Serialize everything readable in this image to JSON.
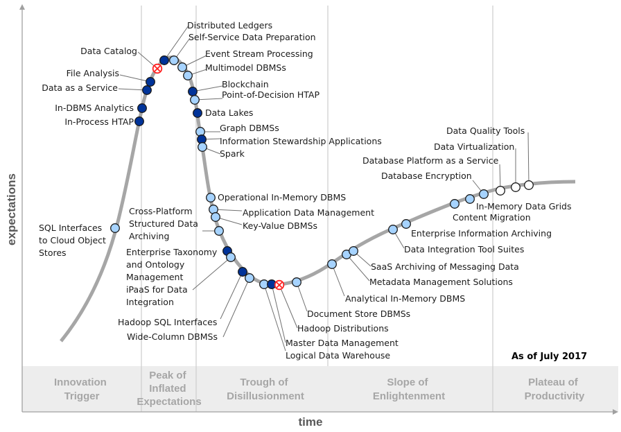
{
  "axes": {
    "y_label": "expectations",
    "x_label": "time"
  },
  "as_of": "As of July 2017",
  "phases": [
    {
      "lines": [
        "Innovation",
        "Trigger"
      ]
    },
    {
      "lines": [
        "Peak of",
        "Inflated",
        "Expectations"
      ]
    },
    {
      "lines": [
        "Trough of",
        "Disillusionment"
      ]
    },
    {
      "lines": [
        "Slope of",
        "Enlightenment"
      ]
    },
    {
      "lines": [
        "Plateau of",
        "Productivity"
      ]
    }
  ],
  "legend_colors": {
    "less_than_2_years": "#a6d3ff",
    "2_to_5_years": "#ffffff",
    "5_to_10_years": "#003399",
    "obsolete": "#ff2020",
    "curve": "#a6a6a6"
  },
  "technologies": [
    {
      "name": "SQL Interfaces to Cloud Object Stores",
      "lines": [
        "SQL Interfaces",
        "to Cloud Object",
        "Stores"
      ],
      "type": "light"
    },
    {
      "name": "In-Process HTAP",
      "lines": [
        "In-Process HTAP"
      ],
      "type": "dark"
    },
    {
      "name": "In-DBMS Analytics",
      "lines": [
        "In-DBMS Analytics"
      ],
      "type": "dark"
    },
    {
      "name": "Data as a Service",
      "lines": [
        "Data as a Service"
      ],
      "type": "dark"
    },
    {
      "name": "File Analysis",
      "lines": [
        "File Analysis"
      ],
      "type": "dark"
    },
    {
      "name": "Data Catalog",
      "lines": [
        "Data Catalog"
      ],
      "type": "obsolete"
    },
    {
      "name": "Distributed Ledgers",
      "lines": [
        "Distributed Ledgers"
      ],
      "type": "dark"
    },
    {
      "name": "Self-Service Data Preparation",
      "lines": [
        "Self-Service Data Preparation"
      ],
      "type": "light"
    },
    {
      "name": "Event Stream Processing",
      "lines": [
        "Event Stream Processing"
      ],
      "type": "light"
    },
    {
      "name": "Multimodel DBMSs",
      "lines": [
        "Multimodel DBMSs"
      ],
      "type": "light"
    },
    {
      "name": "Blockchain",
      "lines": [
        "Blockchain"
      ],
      "type": "dark"
    },
    {
      "name": "Point-of-Decision HTAP",
      "lines": [
        "Point-of-Decision HTAP"
      ],
      "type": "light"
    },
    {
      "name": "Data Lakes",
      "lines": [
        "Data Lakes"
      ],
      "type": "dark"
    },
    {
      "name": "Graph DBMSs",
      "lines": [
        "Graph DBMSs"
      ],
      "type": "light"
    },
    {
      "name": "Information Stewardship Applications",
      "lines": [
        "Information Stewardship Applications"
      ],
      "type": "dark"
    },
    {
      "name": "Spark",
      "lines": [
        "Spark"
      ],
      "type": "light"
    },
    {
      "name": "Operational In-Memory DBMS",
      "lines": [
        "Operational In-Memory DBMS"
      ],
      "type": "light"
    },
    {
      "name": "Application Data Management",
      "lines": [
        "Application Data Management"
      ],
      "type": "light"
    },
    {
      "name": "Key-Value DBMSs",
      "lines": [
        "Key-Value DBMSs"
      ],
      "type": "light"
    },
    {
      "name": "Cross-Platform Structured Data Archiving",
      "lines": [
        "Cross-Platform",
        "Structured Data",
        "Archiving"
      ],
      "type": "light"
    },
    {
      "name": "Enterprise Taxonomy and Ontology Management",
      "lines": [
        "Enterprise Taxonomy",
        "and Ontology",
        "Management"
      ],
      "type": "dark"
    },
    {
      "name": "iPaaS for Data Integration",
      "lines": [
        "iPaaS for Data",
        "Integration"
      ],
      "type": "light"
    },
    {
      "name": "Hadoop SQL Interfaces",
      "lines": [
        "Hadoop SQL Interfaces"
      ],
      "type": "dark"
    },
    {
      "name": "Wide-Column DBMSs",
      "lines": [
        "Wide-Column DBMSs"
      ],
      "type": "light"
    },
    {
      "name": "Logical Data Warehouse",
      "lines": [
        "Logical Data Warehouse"
      ],
      "type": "light"
    },
    {
      "name": "Master Data Management",
      "lines": [
        "Master Data Management"
      ],
      "type": "dark"
    },
    {
      "name": "Hadoop Distributions",
      "lines": [
        "Hadoop Distributions"
      ],
      "type": "obsolete"
    },
    {
      "name": "Document Store DBMSs",
      "lines": [
        "Document Store DBMSs"
      ],
      "type": "light"
    },
    {
      "name": "Analytical In-Memory DBMS",
      "lines": [
        "Analytical In-Memory DBMS"
      ],
      "type": "light"
    },
    {
      "name": "Metadata Management Solutions",
      "lines": [
        "Metadata Management Solutions"
      ],
      "type": "light"
    },
    {
      "name": "SaaS Archiving of Messaging Data",
      "lines": [
        "SaaS Archiving of Messaging Data"
      ],
      "type": "light"
    },
    {
      "name": "Data Integration Tool Suites",
      "lines": [
        "Data Integration Tool Suites"
      ],
      "type": "light"
    },
    {
      "name": "Enterprise Information Archiving",
      "lines": [
        "Enterprise Information Archiving"
      ],
      "type": "light"
    },
    {
      "name": "Content Migration",
      "lines": [
        "Content Migration"
      ],
      "type": "light"
    },
    {
      "name": "In-Memory Data Grids",
      "lines": [
        "In-Memory Data Grids"
      ],
      "type": "light"
    },
    {
      "name": "Database Encryption",
      "lines": [
        "Database Encryption"
      ],
      "type": "light"
    },
    {
      "name": "Database Platform as a Service",
      "lines": [
        "Database Platform as a Service"
      ],
      "type": "white"
    },
    {
      "name": "Data Virtualization",
      "lines": [
        "Data Virtualization"
      ],
      "type": "white"
    },
    {
      "name": "Data Quality Tools",
      "lines": [
        "Data Quality Tools"
      ],
      "type": "white"
    }
  ]
}
